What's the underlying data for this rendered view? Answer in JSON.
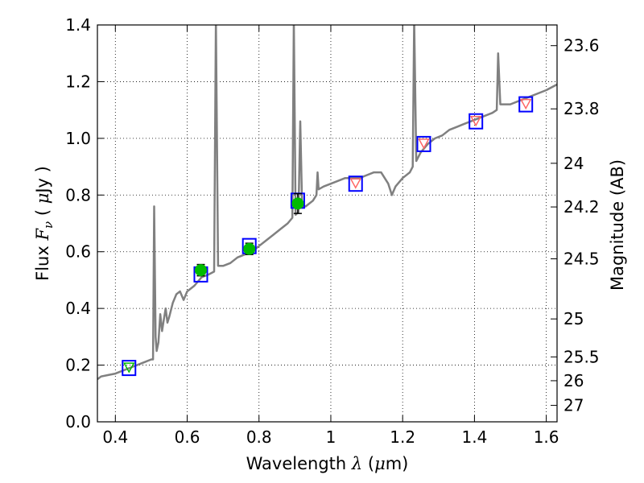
{
  "chart_data": {
    "type": "line",
    "xlabel": {
      "prefix": "Wavelength  ",
      "symbol": "λ",
      "unit_open": " (",
      "unit_mu": "μ",
      "unit_rest": "m)"
    },
    "ylabel": {
      "prefix": "Flux  ",
      "symbol": "F",
      "subscript": "ν",
      "unit_open": "  ( ",
      "unit_mu": "μ",
      "unit_rest": "Jy )"
    },
    "y2label": "Magnitude (AB)",
    "xlim": [
      0.35,
      1.63
    ],
    "ylim": [
      0.0,
      1.4
    ],
    "grid": true,
    "x_ticks": [
      {
        "v": 0.4,
        "label": "0.4"
      },
      {
        "v": 0.6,
        "label": "0.6"
      },
      {
        "v": 0.8,
        "label": "0.8"
      },
      {
        "v": 1.0,
        "label": "1"
      },
      {
        "v": 1.2,
        "label": "1.2"
      },
      {
        "v": 1.4,
        "label": "1.4"
      },
      {
        "v": 1.6,
        "label": "1.6"
      }
    ],
    "y_ticks": [
      {
        "v": 0.0,
        "label": "0.0"
      },
      {
        "v": 0.2,
        "label": "0.2"
      },
      {
        "v": 0.4,
        "label": "0.4"
      },
      {
        "v": 0.6,
        "label": "0.6"
      },
      {
        "v": 0.8,
        "label": "0.8"
      },
      {
        "v": 1.0,
        "label": "1.0"
      },
      {
        "v": 1.2,
        "label": "1.2"
      },
      {
        "v": 1.4,
        "label": "1.4"
      }
    ],
    "y2_ticks": [
      {
        "flux": 1.327,
        "label": "23.6"
      },
      {
        "flux": 1.104,
        "label": "23.8"
      },
      {
        "flux": 0.912,
        "label": "24"
      },
      {
        "flux": 0.758,
        "label": "24.2"
      },
      {
        "flux": 0.575,
        "label": "24.5"
      },
      {
        "flux": 0.363,
        "label": "25"
      },
      {
        "flux": 0.229,
        "label": "25.5"
      },
      {
        "flux": 0.145,
        "label": "26"
      },
      {
        "flux": 0.058,
        "label": "27"
      }
    ],
    "spectrum": {
      "color": "#808080",
      "points": [
        [
          0.35,
          0.15
        ],
        [
          0.36,
          0.16
        ],
        [
          0.38,
          0.165
        ],
        [
          0.4,
          0.17
        ],
        [
          0.42,
          0.18
        ],
        [
          0.44,
          0.19
        ],
        [
          0.46,
          0.2
        ],
        [
          0.48,
          0.21
        ],
        [
          0.5,
          0.22
        ],
        [
          0.505,
          0.22
        ],
        [
          0.508,
          0.76
        ],
        [
          0.512,
          0.3
        ],
        [
          0.515,
          0.25
        ],
        [
          0.52,
          0.28
        ],
        [
          0.525,
          0.38
        ],
        [
          0.53,
          0.32
        ],
        [
          0.535,
          0.36
        ],
        [
          0.54,
          0.4
        ],
        [
          0.545,
          0.35
        ],
        [
          0.55,
          0.37
        ],
        [
          0.56,
          0.42
        ],
        [
          0.57,
          0.45
        ],
        [
          0.58,
          0.46
        ],
        [
          0.59,
          0.43
        ],
        [
          0.6,
          0.46
        ],
        [
          0.62,
          0.48
        ],
        [
          0.64,
          0.51
        ],
        [
          0.66,
          0.52
        ],
        [
          0.675,
          0.53
        ],
        [
          0.68,
          1.42
        ],
        [
          0.686,
          0.55
        ],
        [
          0.7,
          0.55
        ],
        [
          0.72,
          0.56
        ],
        [
          0.74,
          0.58
        ],
        [
          0.76,
          0.59
        ],
        [
          0.78,
          0.6
        ],
        [
          0.8,
          0.62
        ],
        [
          0.82,
          0.64
        ],
        [
          0.84,
          0.66
        ],
        [
          0.86,
          0.68
        ],
        [
          0.88,
          0.7
        ],
        [
          0.893,
          0.72
        ],
        [
          0.897,
          1.42
        ],
        [
          0.902,
          0.73
        ],
        [
          0.91,
          0.74
        ],
        [
          0.915,
          1.06
        ],
        [
          0.92,
          0.76
        ],
        [
          0.93,
          0.76
        ],
        [
          0.95,
          0.78
        ],
        [
          0.96,
          0.8
        ],
        [
          0.963,
          0.88
        ],
        [
          0.966,
          0.82
        ],
        [
          0.98,
          0.83
        ],
        [
          1.0,
          0.84
        ],
        [
          1.02,
          0.85
        ],
        [
          1.04,
          0.86
        ],
        [
          1.06,
          0.86
        ],
        [
          1.08,
          0.86
        ],
        [
          1.1,
          0.87
        ],
        [
          1.12,
          0.88
        ],
        [
          1.14,
          0.88
        ],
        [
          1.16,
          0.84
        ],
        [
          1.17,
          0.8
        ],
        [
          1.18,
          0.83
        ],
        [
          1.2,
          0.86
        ],
        [
          1.22,
          0.88
        ],
        [
          1.228,
          0.9
        ],
        [
          1.232,
          1.42
        ],
        [
          1.238,
          0.92
        ],
        [
          1.25,
          0.95
        ],
        [
          1.27,
          0.98
        ],
        [
          1.29,
          1.0
        ],
        [
          1.31,
          1.01
        ],
        [
          1.33,
          1.03
        ],
        [
          1.35,
          1.04
        ],
        [
          1.37,
          1.05
        ],
        [
          1.39,
          1.06
        ],
        [
          1.41,
          1.07
        ],
        [
          1.43,
          1.08
        ],
        [
          1.45,
          1.09
        ],
        [
          1.462,
          1.1
        ],
        [
          1.466,
          1.3
        ],
        [
          1.472,
          1.12
        ],
        [
          1.48,
          1.12
        ],
        [
          1.5,
          1.12
        ],
        [
          1.52,
          1.13
        ],
        [
          1.54,
          1.14
        ],
        [
          1.56,
          1.15
        ],
        [
          1.58,
          1.16
        ],
        [
          1.6,
          1.17
        ],
        [
          1.63,
          1.19
        ]
      ]
    },
    "model_squares": [
      {
        "x": 0.438,
        "y": 0.19,
        "color": "#0000ff"
      },
      {
        "x": 0.638,
        "y": 0.52,
        "color": "#0000ff"
      },
      {
        "x": 0.773,
        "y": 0.62,
        "color": "#0000ff"
      },
      {
        "x": 0.908,
        "y": 0.78,
        "color": "#0000ff"
      },
      {
        "x": 1.069,
        "y": 0.84,
        "color": "#0000ff"
      },
      {
        "x": 1.259,
        "y": 0.98,
        "color": "#0000ff"
      },
      {
        "x": 1.404,
        "y": 1.06,
        "color": "#0000ff"
      },
      {
        "x": 1.543,
        "y": 1.12,
        "color": "#0000ff"
      }
    ],
    "measured_points": [
      {
        "x": 0.638,
        "y": 0.535,
        "err": 0.02,
        "color": "#00bb00"
      },
      {
        "x": 0.773,
        "y": 0.61,
        "err": 0.02,
        "color": "#00bb00"
      },
      {
        "x": 0.908,
        "y": 0.77,
        "err": 0.035,
        "color": "#00bb00"
      }
    ],
    "upper_limits": [
      {
        "x": 0.438,
        "y": 0.19,
        "color": "#00bb00"
      },
      {
        "x": 1.069,
        "y": 0.84,
        "color": "#ff6666"
      },
      {
        "x": 1.259,
        "y": 0.98,
        "color": "#ff6666"
      },
      {
        "x": 1.404,
        "y": 1.06,
        "color": "#ff6666"
      },
      {
        "x": 1.543,
        "y": 1.12,
        "color": "#ff6666"
      }
    ]
  }
}
